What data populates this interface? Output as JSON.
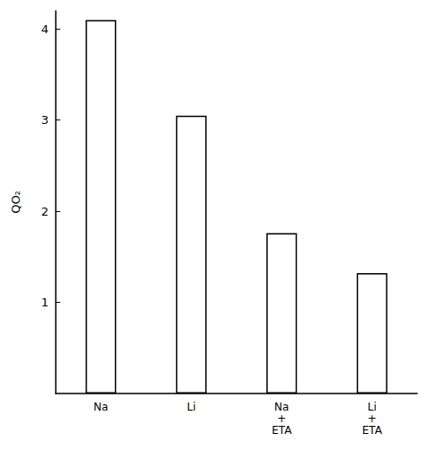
{
  "chart_data": {
    "type": "bar",
    "y_label": "QO₂",
    "categories": [
      "Na",
      "Li",
      "Na\n+\nETA",
      "Li\n+\nETA"
    ],
    "values": [
      4.1,
      3.05,
      1.76,
      1.32
    ],
    "color": "#ffffff",
    "ylim": [
      0,
      4.2
    ],
    "yticks": [
      1,
      2,
      3,
      4
    ],
    "grid": false
  }
}
